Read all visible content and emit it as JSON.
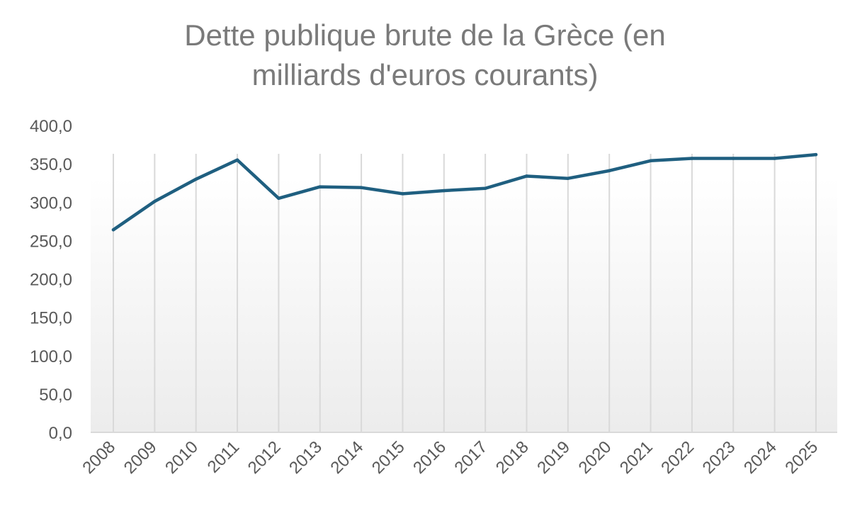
{
  "chart_data": {
    "type": "line",
    "title_line1": "Dette publique brute de la Grèce (en",
    "title_line2": "milliards d'euros courants)",
    "xlabel": "",
    "ylabel": "",
    "categories": [
      "2008",
      "2009",
      "2010",
      "2011",
      "2012",
      "2013",
      "2014",
      "2015",
      "2016",
      "2017",
      "2018",
      "2019",
      "2020",
      "2021",
      "2022",
      "2023",
      "2024",
      "2025"
    ],
    "series": [
      {
        "values": [
          264.0,
          301.0,
          330.0,
          355.0,
          305.0,
          320.0,
          319.0,
          311.0,
          315.0,
          318.0,
          334.0,
          331.0,
          341.0,
          354.0,
          357.0,
          357.0,
          357.0,
          362.0
        ],
        "color": "#1f5f80"
      }
    ],
    "ylim": [
      0,
      400
    ],
    "y_ticks": [
      "0,0",
      "50,0",
      "100,0",
      "150,0",
      "200,0",
      "250,0",
      "300,0",
      "350,0",
      "400,0"
    ],
    "grid": "vertical",
    "legend": "none"
  }
}
